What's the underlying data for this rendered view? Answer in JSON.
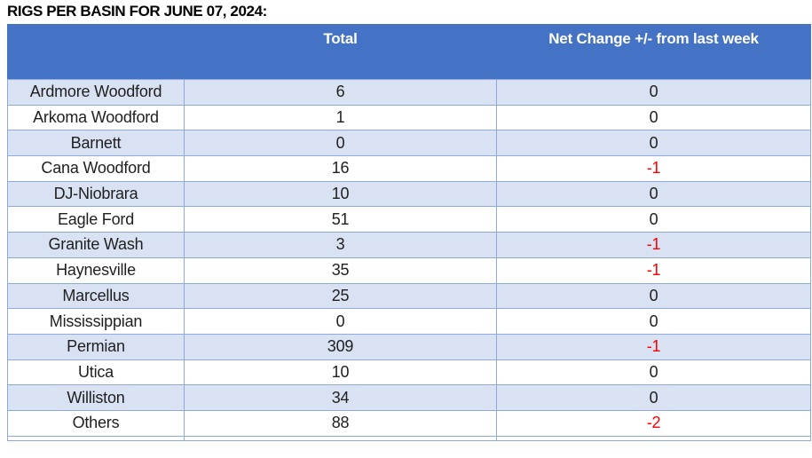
{
  "title": "RIGS PER BASIN FOR JUNE 07, 2024:",
  "table": {
    "columns": [
      "",
      "Total",
      "Net Change +/- from last week"
    ],
    "rows": [
      {
        "basin": "Ardmore Woodford",
        "total": "6",
        "net_change": "0"
      },
      {
        "basin": "Arkoma Woodford",
        "total": "1",
        "net_change": "0"
      },
      {
        "basin": "Barnett",
        "total": "0",
        "net_change": "0"
      },
      {
        "basin": "Cana Woodford",
        "total": "16",
        "net_change": "-1"
      },
      {
        "basin": "DJ-Niobrara",
        "total": "10",
        "net_change": "0"
      },
      {
        "basin": "Eagle Ford",
        "total": "51",
        "net_change": "0"
      },
      {
        "basin": "Granite Wash",
        "total": "3",
        "net_change": "-1"
      },
      {
        "basin": "Haynesville",
        "total": "35",
        "net_change": "-1"
      },
      {
        "basin": "Marcellus",
        "total": "25",
        "net_change": "0"
      },
      {
        "basin": "Mississippian",
        "total": "0",
        "net_change": "0"
      },
      {
        "basin": "Permian",
        "total": "309",
        "net_change": "-1"
      },
      {
        "basin": "Utica",
        "total": "10",
        "net_change": "0"
      },
      {
        "basin": "Williston",
        "total": "34",
        "net_change": "0"
      },
      {
        "basin": "Others",
        "total": "88",
        "net_change": "-2"
      }
    ]
  },
  "colors": {
    "header_bg": "#4472c4",
    "band_bg": "#d9e2f3",
    "border": "#8eaadb",
    "header_text": "#ffffff",
    "body_text": "#1f1f1f",
    "negative_text": "#ff0000"
  }
}
